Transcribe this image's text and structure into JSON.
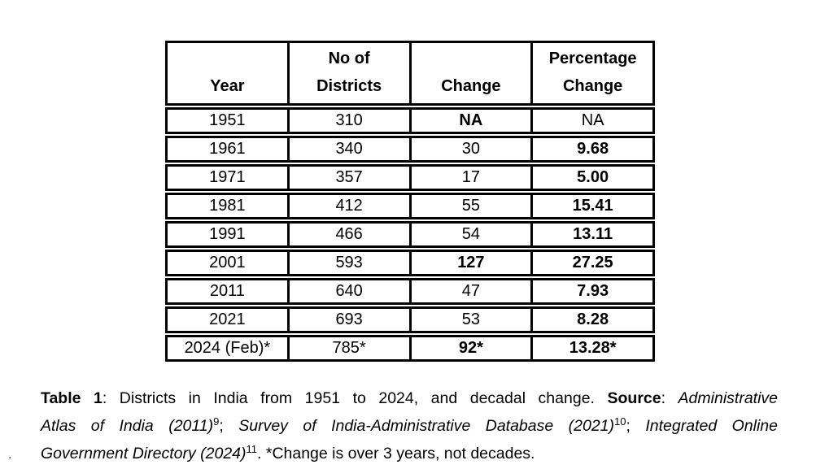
{
  "table": {
    "columns": [
      {
        "label": "Year"
      },
      {
        "label": "No of\nDistricts"
      },
      {
        "label": "Change"
      },
      {
        "label": "Percentage\nChange"
      }
    ],
    "rows": [
      {
        "cells": [
          {
            "text": "1951"
          },
          {
            "text": "310"
          },
          {
            "text": "NA",
            "bold": true
          },
          {
            "text": "NA"
          }
        ]
      },
      {
        "cells": [
          {
            "text": "1961"
          },
          {
            "text": "340"
          },
          {
            "text": "30"
          },
          {
            "text": "9.68",
            "bold": true
          }
        ]
      },
      {
        "cells": [
          {
            "text": "1971"
          },
          {
            "text": "357"
          },
          {
            "text": "17"
          },
          {
            "text": "5.00",
            "bold": true
          }
        ]
      },
      {
        "cells": [
          {
            "text": "1981"
          },
          {
            "text": "412"
          },
          {
            "text": "55"
          },
          {
            "text": "15.41",
            "bold": true
          }
        ]
      },
      {
        "cells": [
          {
            "text": "1991"
          },
          {
            "text": "466"
          },
          {
            "text": "54"
          },
          {
            "text": "13.11",
            "bold": true
          }
        ]
      },
      {
        "cells": [
          {
            "text": "2001"
          },
          {
            "text": "593"
          },
          {
            "text": "127",
            "bold": true
          },
          {
            "text": "27.25",
            "bold": true
          }
        ]
      },
      {
        "cells": [
          {
            "text": "2011"
          },
          {
            "text": "640"
          },
          {
            "text": "47"
          },
          {
            "text": "7.93",
            "bold": true
          }
        ]
      },
      {
        "cells": [
          {
            "text": "2021"
          },
          {
            "text": "693"
          },
          {
            "text": "53"
          },
          {
            "text": "8.28",
            "bold": true
          }
        ]
      },
      {
        "cells": [
          {
            "text": "2024 (Feb)*"
          },
          {
            "text": "785*"
          },
          {
            "text": "92*",
            "bold": true
          },
          {
            "text": "13.28*",
            "bold": true
          }
        ]
      }
    ],
    "border_color": "#000000"
  },
  "caption": {
    "lines": [
      [
        {
          "text": "Table 1",
          "bold": true
        },
        {
          "text": ": Districts in India from 1951 to 2024, and decadal change. "
        },
        {
          "text": "Source",
          "bold": true
        },
        {
          "text": ": "
        },
        {
          "text": "Administrative",
          "italic": true
        }
      ],
      [
        {
          "text": "Atlas of India (2011)",
          "italic": true
        },
        {
          "text": "9",
          "sup": true
        },
        {
          "text": "; "
        },
        {
          "text": "Survey of India-Administrative Database (2021)",
          "italic": true
        },
        {
          "text": "10",
          "sup": true
        },
        {
          "text": "; "
        },
        {
          "text": "Integrated Online",
          "italic": true
        }
      ],
      [
        {
          "text": "Government Directory (2024)",
          "italic": true
        },
        {
          "text": "11",
          "sup": true
        },
        {
          "text": ". *Change is over 3 years, not decades."
        }
      ]
    ]
  },
  "stray_mark": {
    "text": "."
  }
}
